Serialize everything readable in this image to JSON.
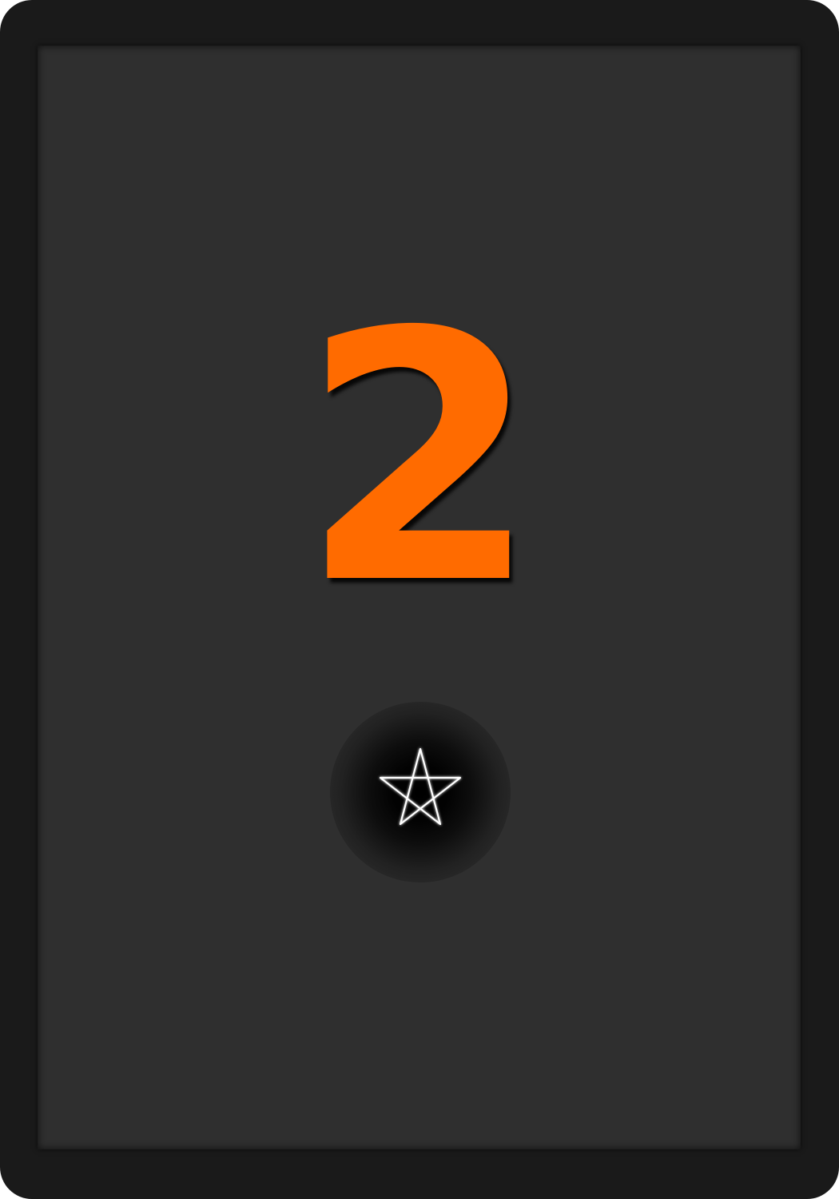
{
  "card": {
    "rank": "2",
    "suit_icon": "pentagram-icon",
    "colors": {
      "frame": "#1a1a1a",
      "face": "#2f2f2f",
      "rank": "#ff6b00",
      "suit": "#ffffff"
    }
  }
}
